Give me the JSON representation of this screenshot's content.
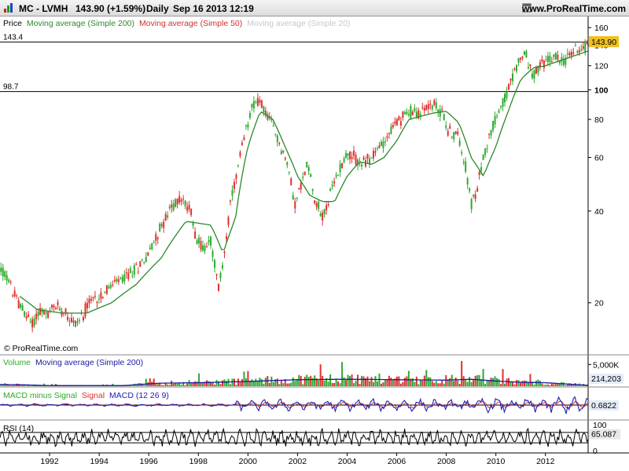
{
  "header": {
    "symbol": "MC - LVMH",
    "price_change": "143.90 (+1.59%)",
    "period": "Daily",
    "datetime": "Sep 16 2013 12:19",
    "site": "www.ProRealTime.com"
  },
  "colors": {
    "price_up": "#2eaa2e",
    "price_down": "#e03030",
    "ma200": "#2a8a2a",
    "ma50": "#d03030",
    "ma20": "#c8c8c8",
    "volume_ma": "#1a1aa0",
    "macd": "#2020b0",
    "signal": "#e03030",
    "macd_hist": "#2eaa2e",
    "rsi": "#000000",
    "current_label_bg": "#f0c020"
  },
  "chart_data": [
    {
      "type": "candlestick",
      "panel": "price",
      "legend": [
        "Price",
        "Moving average (Simple 200)",
        "Moving average (Simple 50)",
        "Moving average (Simple 20)"
      ],
      "y_scale": "log",
      "ylim": [
        13.5,
        170
      ],
      "y_ticks": [
        "160",
        "140",
        "120",
        "100",
        "80",
        "60",
        "40",
        "20"
      ],
      "x_ticks": [
        "1992",
        "1994",
        "1996",
        "1998",
        "2000",
        "2002",
        "2004",
        "2006",
        "2008",
        "2010",
        "2012"
      ],
      "xlim": [
        1990.0,
        2013.72
      ],
      "reference_lines": [
        {
          "label": "143.4",
          "value": 143.4
        },
        {
          "label": "98.7",
          "value": 98.7
        }
      ],
      "current_value_label": "143.90",
      "approx_close_series": {
        "x": [
          1990.0,
          1990.3,
          1990.6,
          1990.9,
          1991.1,
          1991.3,
          1991.6,
          1991.9,
          1992.2,
          1992.6,
          1993.0,
          1993.3,
          1993.6,
          1994.0,
          1994.3,
          1994.6,
          1995.0,
          1995.5,
          1996.0,
          1996.3,
          1996.7,
          1997.0,
          1997.3,
          1997.7,
          1997.9,
          1998.2,
          1998.5,
          1998.8,
          1999.0,
          1999.3,
          1999.6,
          1999.9,
          2000.1,
          2000.3,
          2000.5,
          2000.8,
          2001.1,
          2001.4,
          2001.7,
          2001.9,
          2002.2,
          2002.4,
          2002.7,
          2003.0,
          2003.2,
          2003.5,
          2003.8,
          2004.0,
          2004.3,
          2004.6,
          2005.0,
          2005.5,
          2006.0,
          2006.5,
          2007.0,
          2007.4,
          2007.8,
          2008.1,
          2008.5,
          2008.8,
          2009.0,
          2009.2,
          2009.5,
          2009.8,
          2010.1,
          2010.4,
          2010.7,
          2010.9,
          2011.2,
          2011.5,
          2011.8,
          2012.0,
          2012.4,
          2012.8,
          2013.2,
          2013.5,
          2013.72
        ],
        "close": [
          26,
          24,
          21,
          19,
          18,
          17,
          19,
          18,
          19.5,
          19,
          17,
          18,
          20,
          21,
          22,
          23,
          24,
          26,
          29,
          33,
          38,
          42,
          44,
          40,
          33,
          30,
          32,
          22,
          27,
          42,
          55,
          72,
          85,
          93,
          90,
          82,
          72,
          63,
          52,
          42,
          50,
          58,
          44,
          38,
          42,
          50,
          58,
          62,
          60,
          57,
          60,
          68,
          78,
          85,
          84,
          90,
          85,
          73,
          70,
          55,
          42,
          45,
          60,
          73,
          85,
          95,
          110,
          125,
          130,
          110,
          120,
          124,
          128,
          125,
          136,
          138,
          143.9
        ]
      },
      "approx_ma200": {
        "x": [
          1990.8,
          1991.5,
          1992.5,
          1993.5,
          1994.5,
          1995.5,
          1996.5,
          1997.5,
          1998.5,
          1999.0,
          1999.5,
          2000.0,
          2000.5,
          2001.0,
          2001.5,
          2002.0,
          2002.5,
          2003.0,
          2003.5,
          2004.0,
          2004.5,
          2005.0,
          2005.5,
          2006.0,
          2006.5,
          2007.0,
          2007.5,
          2008.0,
          2008.5,
          2009.0,
          2009.5,
          2010.0,
          2010.5,
          2011.0,
          2011.5,
          2012.0,
          2012.5,
          2013.0,
          2013.72
        ],
        "value": [
          21,
          19,
          18.5,
          18.5,
          20,
          23,
          28,
          37,
          36,
          29,
          38,
          65,
          85,
          80,
          65,
          52,
          45,
          43,
          43,
          52,
          58,
          57,
          60,
          68,
          80,
          82,
          84,
          85,
          78,
          60,
          52,
          65,
          85,
          108,
          118,
          120,
          124,
          128,
          134
        ]
      }
    },
    {
      "type": "bar",
      "panel": "volume",
      "legend": [
        "Volume",
        "Moving average (Simple 200)"
      ],
      "y_ticks": [
        "5,000K"
      ],
      "ylim": [
        0,
        6500000
      ],
      "current_value_label": "214,203",
      "approx_volume_ma": {
        "x": [
          1990,
          1991,
          1992,
          1993,
          1994,
          1995,
          1995.9,
          1996.5,
          1998,
          2000,
          2002,
          2004,
          2006,
          2008,
          2009,
          2010,
          2011,
          2012,
          2013.72
        ],
        "value": [
          400000,
          300000,
          150000,
          150000,
          150000,
          150000,
          500000,
          700000,
          800000,
          1100000,
          1500000,
          1600000,
          1500000,
          1400000,
          1600000,
          1200000,
          900000,
          800000,
          214203
        ]
      }
    },
    {
      "type": "line",
      "panel": "macd",
      "legend": [
        "MACD minus Signal",
        "Signal",
        "MACD (12 26 9)"
      ],
      "current_value_label": "0.6822"
    },
    {
      "type": "line",
      "panel": "rsi",
      "legend": [
        "RSI (14)"
      ],
      "y_ticks": [
        "100",
        "0"
      ],
      "ylim": [
        0,
        100
      ],
      "reference_lines": [
        70,
        30
      ],
      "current_value_label": "65.087"
    }
  ],
  "watermark": "© ProRealTime.com"
}
